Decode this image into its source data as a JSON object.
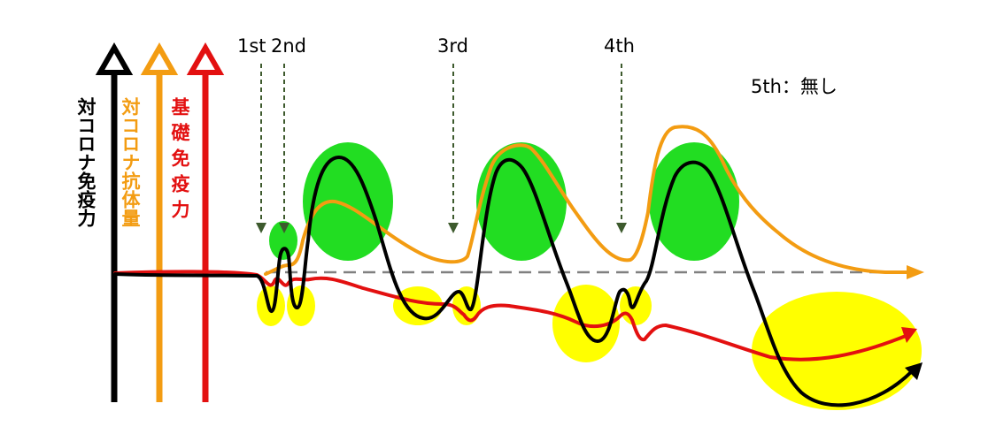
{
  "axes": {
    "black_label": "対コロナ免疫力",
    "orange_label": "対コロナ抗体量",
    "red_label": "基礎免疫力"
  },
  "doses": [
    {
      "label": "1st"
    },
    {
      "label": "2nd"
    },
    {
      "label": "3rd"
    },
    {
      "label": "4th"
    }
  ],
  "note": "5th：無し",
  "colors": {
    "black": "#000000",
    "orange": "#f39c12",
    "red": "#e31010",
    "green": "#22dd22",
    "yellow": "#ffff00",
    "dose_arrow": "#3d5a2d",
    "baseline": "#808080"
  }
}
